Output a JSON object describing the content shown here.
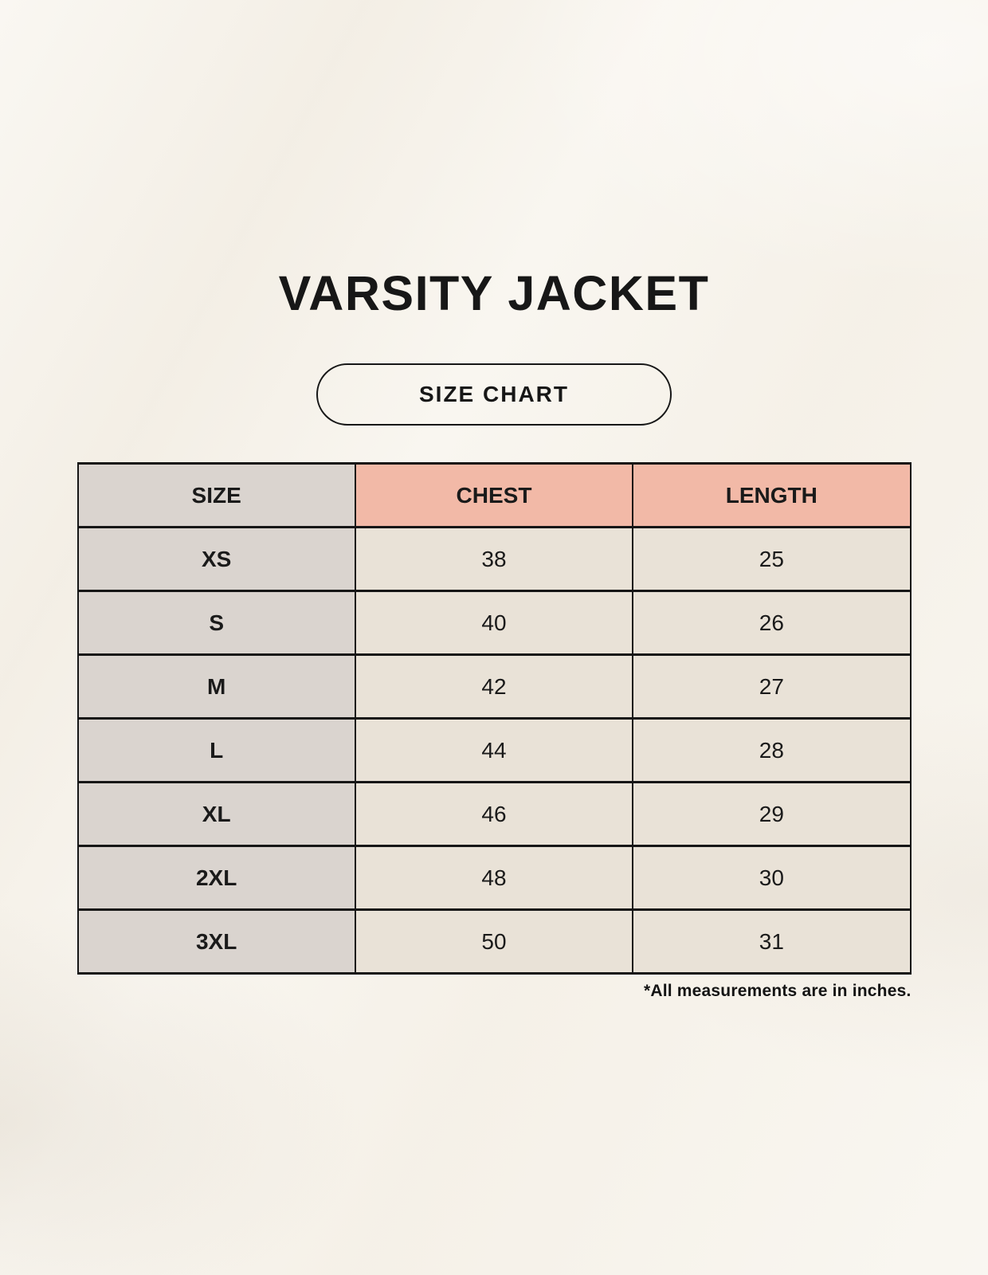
{
  "page": {
    "title": "VARSITY JACKET",
    "badge_label": "SIZE CHART",
    "footnote": "*All measurements are in inches."
  },
  "chart_data": {
    "type": "table",
    "title": "Varsity Jacket Size Chart",
    "columns": [
      "SIZE",
      "CHEST",
      "LENGTH"
    ],
    "rows": [
      [
        "XS",
        "38",
        "25"
      ],
      [
        "S",
        "40",
        "26"
      ],
      [
        "M",
        "42",
        "27"
      ],
      [
        "L",
        "44",
        "28"
      ],
      [
        "XL",
        "46",
        "29"
      ],
      [
        "2XL",
        "48",
        "30"
      ],
      [
        "3XL",
        "50",
        "31"
      ]
    ],
    "units": "inches"
  },
  "colors": {
    "background": "#f7f3eb",
    "accent_header": "#f2b9a7",
    "size_column": "#dad4cf",
    "data_cell": "#e9e2d7",
    "border": "#161616",
    "text": "#1a1a1a"
  }
}
